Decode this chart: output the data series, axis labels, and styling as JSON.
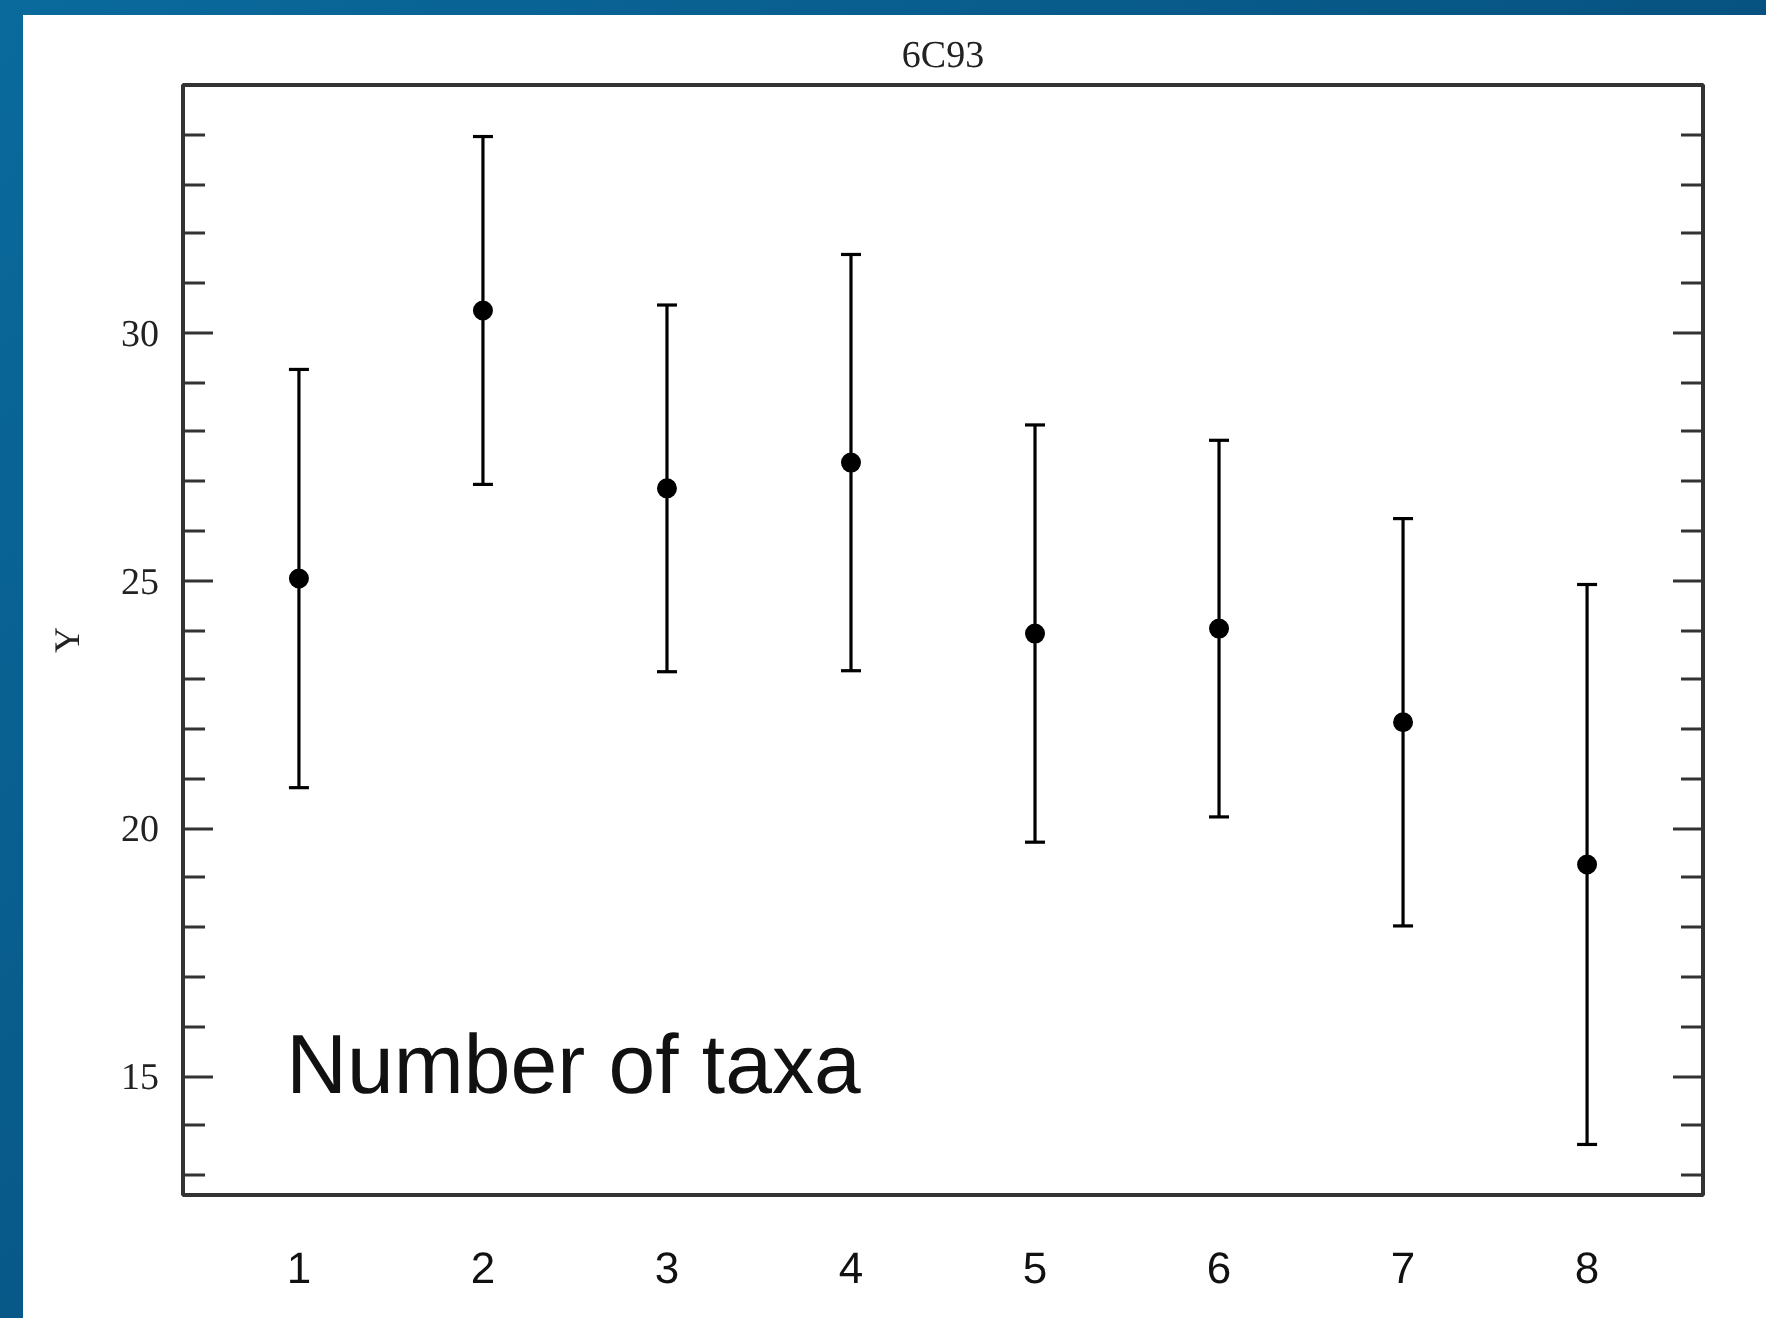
{
  "chart_data": {
    "type": "scatter",
    "title": "6C93",
    "ylabel": "Y",
    "annotations": [
      "Number of taxa"
    ],
    "x": [
      1,
      2,
      3,
      4,
      5,
      6,
      7,
      8
    ],
    "values": [
      25.04,
      30.45,
      26.86,
      27.38,
      23.93,
      24.03,
      22.14,
      19.27
    ],
    "errors": [
      4.22,
      3.51,
      3.7,
      4.2,
      4.21,
      3.8,
      4.11,
      5.65
    ],
    "color": "#000000",
    "marker": "circle",
    "grid": false,
    "xlim": [
      0.37,
      8.63
    ],
    "xticks": [
      1,
      2,
      3,
      4,
      5,
      6,
      7,
      8
    ],
    "ylim": [
      12.6,
      35.0
    ],
    "yticks": [
      {
        "value": 13,
        "label": null
      },
      {
        "value": 14,
        "label": null
      },
      15,
      {
        "value": 16,
        "label": null
      },
      {
        "value": 17,
        "label": null
      },
      {
        "value": 18,
        "label": null
      },
      {
        "value": 19,
        "label": null
      },
      20,
      {
        "value": 21,
        "label": null
      },
      {
        "value": 22,
        "label": null
      },
      {
        "value": 23,
        "label": null
      },
      {
        "value": 24,
        "label": null
      },
      25,
      {
        "value": 26,
        "label": null
      },
      {
        "value": 27,
        "label": null
      },
      {
        "value": 28,
        "label": null
      },
      {
        "value": 29,
        "label": null
      },
      30,
      {
        "value": 31,
        "label": null
      },
      {
        "value": 32,
        "label": null
      },
      {
        "value": 33,
        "label": null
      },
      {
        "value": 34,
        "label": null
      }
    ]
  }
}
